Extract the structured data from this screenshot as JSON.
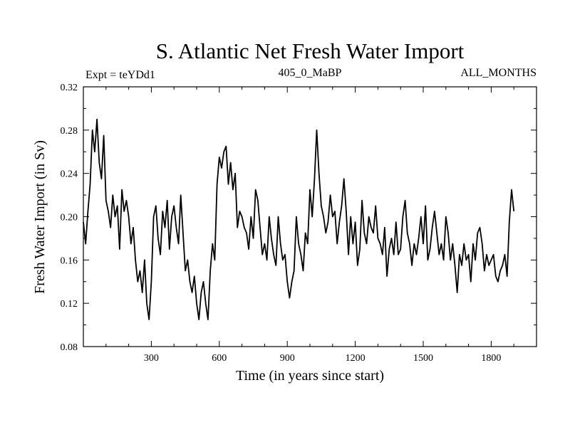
{
  "chart_data": {
    "type": "line",
    "title": "S. Atlantic Net Fresh Water Import",
    "subtitle_left": "Expt = teYDd1",
    "subtitle_center": "405_0_MaBP",
    "subtitle_right": "ALL_MONTHS",
    "xlabel": "Time (in years since start)",
    "ylabel": "Fresh Water Import (in Sv)",
    "xlim": [
      0,
      2000
    ],
    "ylim": [
      0.08,
      0.32
    ],
    "x_ticks": [
      300,
      600,
      900,
      1200,
      1500,
      1800
    ],
    "x_tick_labels": [
      "300",
      "600",
      "900",
      "1200",
      "1500",
      "1800"
    ],
    "y_ticks": [
      0.08,
      0.12,
      0.16,
      0.2,
      0.24,
      0.28,
      0.32
    ],
    "y_tick_labels": [
      "0.08",
      "0.12",
      "0.16",
      "0.20",
      "0.24",
      "0.28",
      "0.32"
    ],
    "line_color": "#000000",
    "series": [
      {
        "name": "fresh_water_import",
        "sample_interval_years": 10,
        "values": [
          0.195,
          0.175,
          0.205,
          0.23,
          0.28,
          0.26,
          0.29,
          0.25,
          0.235,
          0.275,
          0.215,
          0.205,
          0.19,
          0.22,
          0.2,
          0.21,
          0.17,
          0.225,
          0.205,
          0.215,
          0.2,
          0.175,
          0.19,
          0.16,
          0.14,
          0.15,
          0.13,
          0.16,
          0.12,
          0.105,
          0.14,
          0.2,
          0.21,
          0.18,
          0.165,
          0.205,
          0.19,
          0.215,
          0.17,
          0.2,
          0.21,
          0.19,
          0.175,
          0.22,
          0.185,
          0.15,
          0.16,
          0.14,
          0.13,
          0.145,
          0.12,
          0.105,
          0.13,
          0.14,
          0.12,
          0.105,
          0.15,
          0.175,
          0.16,
          0.23,
          0.255,
          0.245,
          0.26,
          0.265,
          0.23,
          0.25,
          0.225,
          0.24,
          0.19,
          0.205,
          0.2,
          0.19,
          0.185,
          0.17,
          0.2,
          0.18,
          0.225,
          0.215,
          0.19,
          0.165,
          0.175,
          0.16,
          0.2,
          0.18,
          0.165,
          0.155,
          0.2,
          0.175,
          0.16,
          0.165,
          0.14,
          0.125,
          0.14,
          0.15,
          0.2,
          0.175,
          0.165,
          0.15,
          0.185,
          0.175,
          0.225,
          0.2,
          0.235,
          0.28,
          0.24,
          0.21,
          0.2,
          0.185,
          0.195,
          0.22,
          0.2,
          0.205,
          0.175,
          0.195,
          0.21,
          0.235,
          0.205,
          0.165,
          0.2,
          0.175,
          0.195,
          0.155,
          0.17,
          0.215,
          0.185,
          0.175,
          0.2,
          0.19,
          0.185,
          0.21,
          0.18,
          0.175,
          0.165,
          0.19,
          0.145,
          0.17,
          0.18,
          0.165,
          0.195,
          0.165,
          0.17,
          0.2,
          0.215,
          0.185,
          0.175,
          0.155,
          0.175,
          0.165,
          0.18,
          0.2,
          0.175,
          0.21,
          0.16,
          0.17,
          0.19,
          0.205,
          0.185,
          0.165,
          0.175,
          0.16,
          0.2,
          0.185,
          0.16,
          0.175,
          0.155,
          0.13,
          0.165,
          0.155,
          0.175,
          0.16,
          0.165,
          0.14,
          0.175,
          0.16,
          0.185,
          0.19,
          0.175,
          0.15,
          0.165,
          0.155,
          0.16,
          0.165,
          0.145,
          0.14,
          0.15,
          0.155,
          0.165,
          0.145,
          0.195,
          0.225,
          0.205
        ]
      }
    ]
  }
}
